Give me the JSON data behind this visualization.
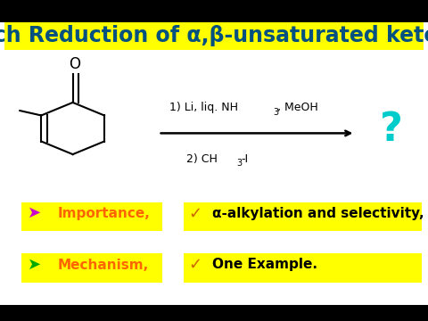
{
  "bg_color": "#000000",
  "content_bg": "#ffffff",
  "title_bg": "#ffff00",
  "title_text": "Birch Reduction of α,β-unsaturated ketone",
  "title_color": "#005080",
  "title_fontsize": 17,
  "question_color": "#00cccc",
  "bullet1_arrow": "➤",
  "bullet1_arrow_color": "#cc00cc",
  "bullet1_text": "Importance,",
  "bullet1_text_color": "#ff6600",
  "bullet1_bg": "#ffff00",
  "bullet2_arrow": "➤",
  "bullet2_arrow_color": "#00aa00",
  "bullet2_text": "Mechanism,",
  "bullet2_text_color": "#ff6600",
  "bullet2_bg": "#ffff00",
  "bullet3_check": "✓",
  "bullet3_check_color": "#cc6600",
  "bullet3_text": "α-alkylation and selectivity,",
  "bullet3_text_color": "#000000",
  "bullet3_bg": "#ffff00",
  "bullet4_check": "✓",
  "bullet4_check_color": "#cc6600",
  "bullet4_text": "One Example.",
  "bullet4_text_color": "#000000",
  "bullet4_bg": "#ffff00"
}
